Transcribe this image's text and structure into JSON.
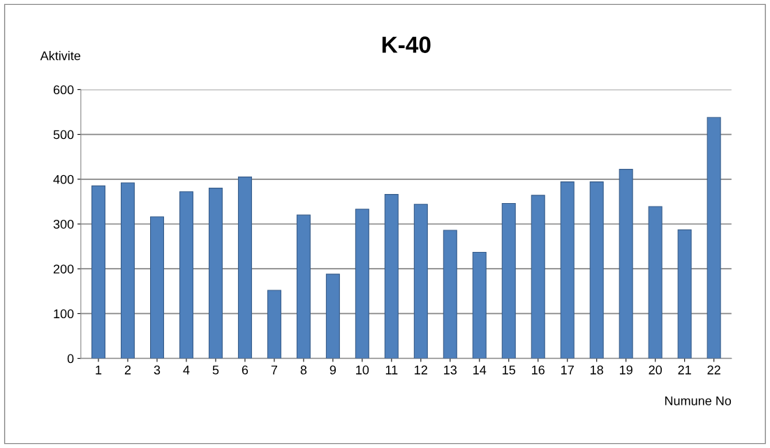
{
  "chart_data": {
    "type": "bar",
    "title": "K-40",
    "ylabel": "Aktivite",
    "xlabel": "Numune No",
    "categories": [
      "1",
      "2",
      "3",
      "4",
      "5",
      "6",
      "7",
      "8",
      "9",
      "10",
      "11",
      "12",
      "13",
      "14",
      "15",
      "16",
      "17",
      "18",
      "19",
      "20",
      "21",
      "22"
    ],
    "values": [
      385,
      392,
      316,
      372,
      380,
      405,
      152,
      320,
      188,
      333,
      366,
      344,
      286,
      237,
      346,
      364,
      394,
      394,
      422,
      339,
      287,
      538
    ],
    "color": "#4f81bd",
    "ylim": [
      0,
      600
    ],
    "yticks": [
      0,
      100,
      200,
      300,
      400,
      500,
      600
    ],
    "grid": "y",
    "legend": false
  }
}
